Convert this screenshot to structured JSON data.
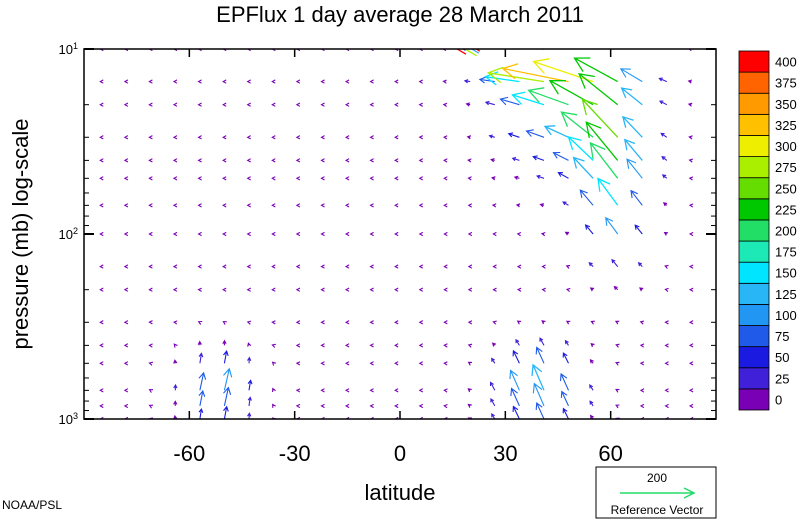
{
  "chart_data": {
    "type": "vector-field",
    "title": "EPFlux  1 day average  28 March       2011",
    "xlabel": "latitude",
    "ylabel": "pressure (mb)  log-scale",
    "xlim": [
      -90,
      90
    ],
    "ylim": [
      1000,
      10
    ],
    "yscale": "log",
    "xticks": [
      -60,
      -30,
      0,
      30,
      60
    ],
    "xtick_labels": [
      "-60",
      "-30",
      "0",
      "30",
      "60"
    ],
    "yticks": [
      {
        "value": 10,
        "base": "10",
        "exp": "1"
      },
      {
        "value": 100,
        "base": "10",
        "exp": "2"
      },
      {
        "value": 1000,
        "base": "10",
        "exp": "3"
      }
    ],
    "colorbar": {
      "levels": [
        0,
        25,
        50,
        75,
        100,
        125,
        150,
        175,
        200,
        225,
        250,
        275,
        300,
        325,
        350,
        375,
        400
      ],
      "colors": [
        "#7a00b5",
        "#4020d8",
        "#1a1ae0",
        "#1f5ae8",
        "#2196f3",
        "#29b6f6",
        "#00e5ff",
        "#1de9b6",
        "#22dd66",
        "#00c800",
        "#66dd00",
        "#aaee00",
        "#eeee00",
        "#ffc000",
        "#ff9a00",
        "#ff6400",
        "#ff0000"
      ]
    },
    "reference_vector": {
      "magnitude": 200,
      "label": "Reference Vector",
      "color": "#22dd66"
    },
    "credit": "NOAA/PSL"
  }
}
